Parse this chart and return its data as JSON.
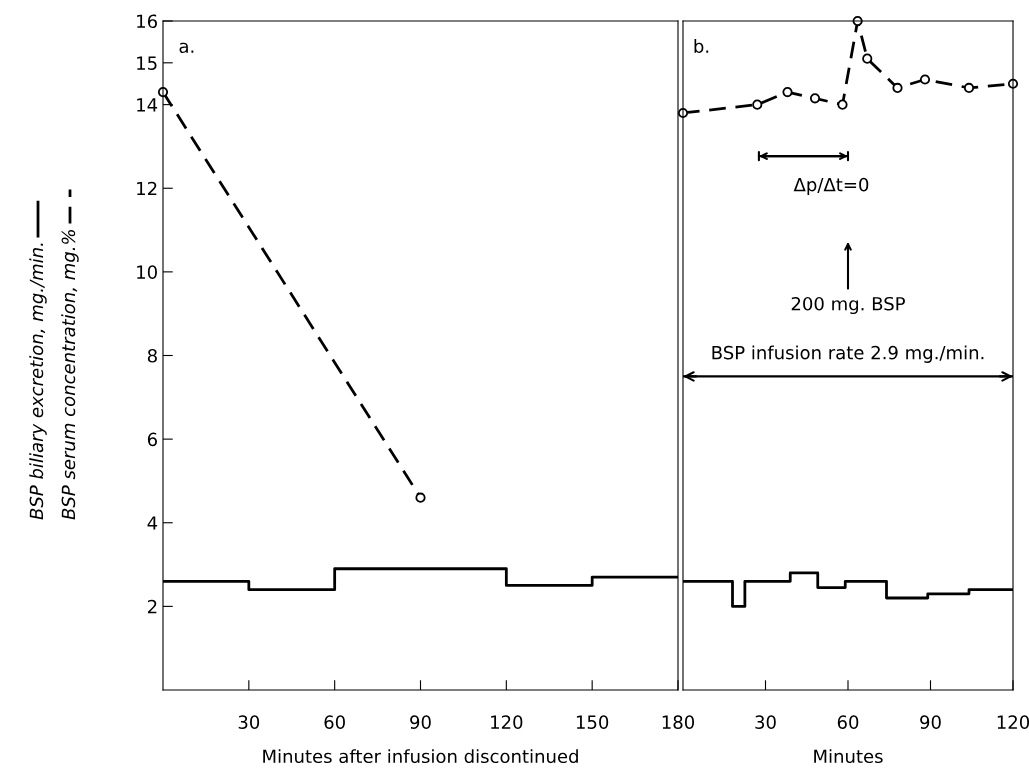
{
  "chart_data": [
    {
      "type": "line",
      "xlabel": "Minutes after infusion discontinued",
      "xlim": [
        0,
        180
      ],
      "xticks": [
        30,
        60,
        90,
        120,
        150,
        180
      ],
      "ylim": [
        0,
        16
      ],
      "yticks": [
        2,
        4,
        6,
        8,
        10,
        12,
        14,
        15,
        16
      ],
      "grid": false,
      "legend": "left",
      "series": [
        {
          "name": "BSP biliary excretion, mg./min.",
          "type": "step",
          "color": "#000000",
          "line_style": "solid",
          "x": [
            0,
            30,
            60,
            120,
            150,
            180
          ],
          "values": [
            2.6,
            2.4,
            2.9,
            2.5,
            2.7,
            2.7
          ]
        },
        {
          "name": "BSP serum concentration, mg.%",
          "color": "#000000",
          "line_style": "dashed",
          "marker": "circle",
          "x": [
            0,
            90
          ],
          "values": [
            14.3,
            4.6
          ]
        }
      ],
      "annotations": [
        "a."
      ]
    },
    {
      "type": "line",
      "xlabel": "Minutes",
      "xlim": [
        0,
        120
      ],
      "xticks": [
        30,
        60,
        90,
        120
      ],
      "ylim": [
        0,
        16
      ],
      "tick_labels": "x",
      "grid": false,
      "series": [
        {
          "type": "step",
          "color": "#000000",
          "line_style": "solid",
          "x": [
            0,
            18,
            22.5,
            39,
            49,
            59,
            74,
            89,
            104,
            120
          ],
          "values": [
            2.6,
            2.0,
            2.6,
            2.8,
            2.45,
            2.6,
            2.2,
            2.3,
            2.4,
            2.4
          ]
        },
        {
          "color": "#000000",
          "line_style": "dashed",
          "marker": "circle",
          "x": [
            0,
            27,
            38,
            48,
            58,
            63.5,
            67,
            78,
            88,
            104,
            120
          ],
          "values": [
            13.8,
            14.0,
            14.3,
            14.15,
            14.0,
            16.0,
            15.1,
            14.4,
            14.6,
            14.4,
            14.5
          ]
        }
      ],
      "ref_lines": [
        {
          "axis": "y",
          "value": 7.5,
          "label": "BSP infusion rate 2.9 mg./min.",
          "color": "#000000",
          "line_style": "solid"
        }
      ],
      "annotations": [
        "b.",
        "Δp/Δt=0",
        "200 mg. BSP"
      ]
    }
  ]
}
